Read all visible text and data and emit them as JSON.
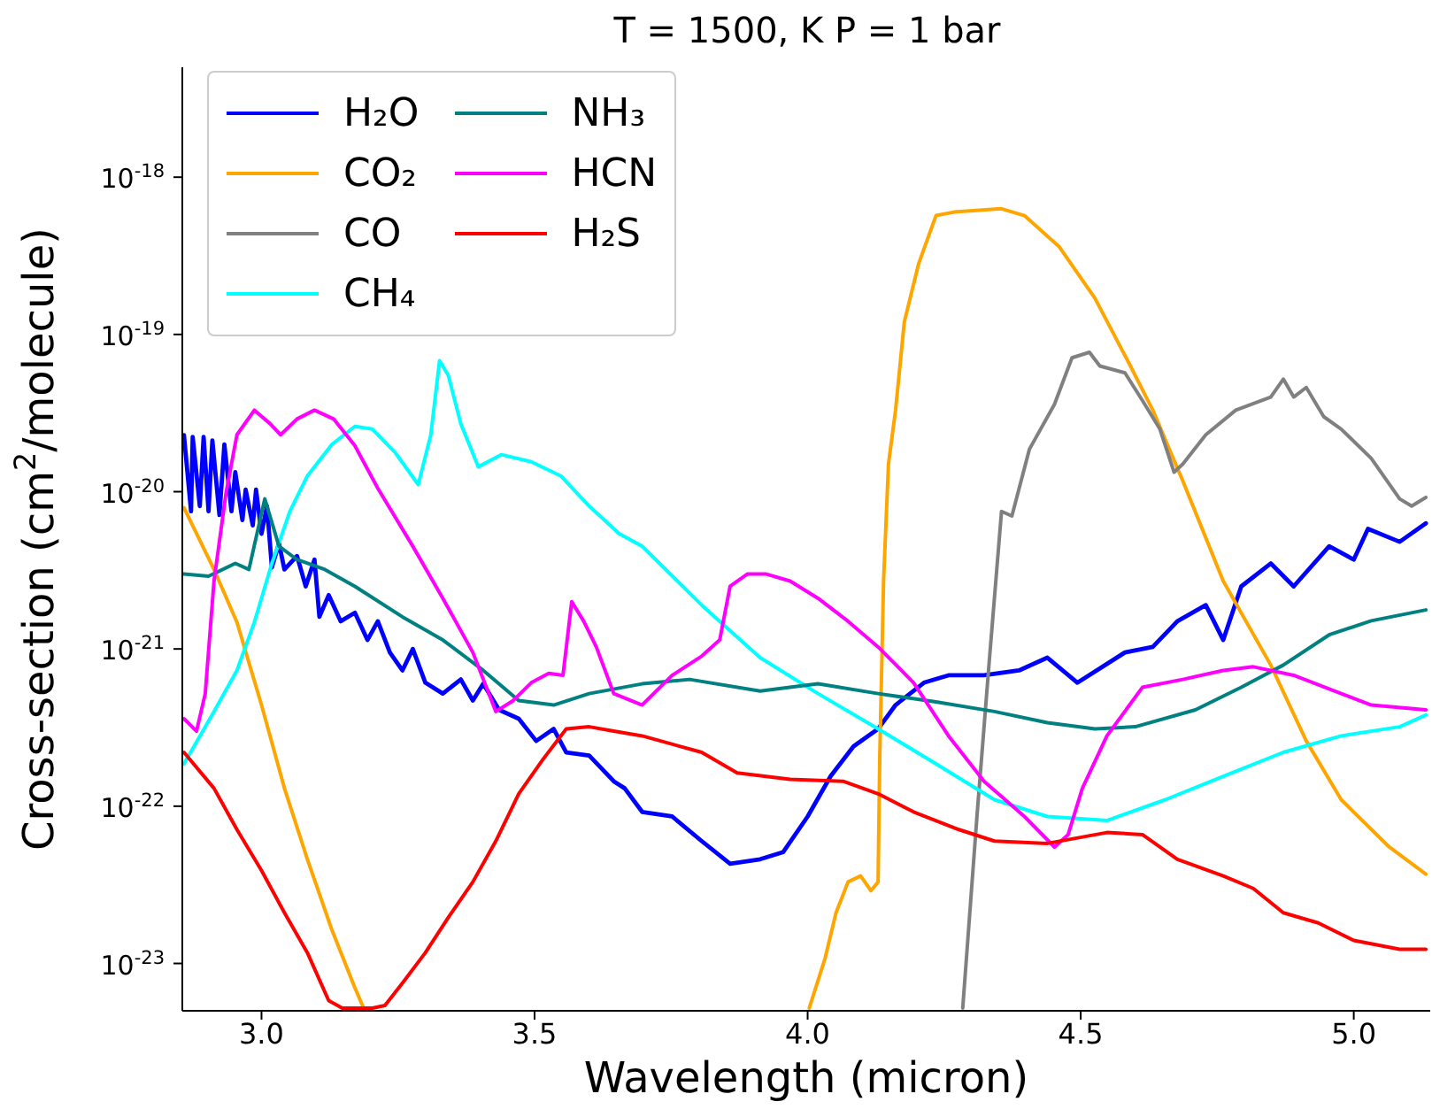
{
  "chart_data": {
    "type": "line",
    "title": "T = 1500, K P = 1 bar",
    "xlabel": "Wavelength (micron)",
    "ylabel": "Cross-section (cm$^{2}$/molecule)",
    "log": "y",
    "legend": "top left",
    "xlim": [
      2.855,
      5.14
    ],
    "ylim": [
      5e-24,
      5e-18
    ],
    "xticks": [
      {
        "value": 3,
        "label": "3.0"
      },
      {
        "value": 3.5,
        "label": "3.5"
      },
      {
        "value": 4,
        "label": "4.0"
      },
      {
        "value": 4.5,
        "label": "4.5"
      },
      {
        "value": 5,
        "label": "5.0"
      }
    ],
    "yticks": [
      {
        "value": 1e-23,
        "label": "10$^{-23}$"
      },
      {
        "value": 1e-22,
        "label": "10$^{-22}$"
      },
      {
        "value": 1e-21,
        "label": "10$^{-21}$"
      },
      {
        "value": 1e-20,
        "label": "10$^{-20}$"
      },
      {
        "value": 1e-19,
        "label": "10$^{-19}$"
      },
      {
        "value": 1e-18,
        "label": "10$^{-18}$"
      }
    ],
    "series": [
      {
        "name": "H₂O",
        "color": "#0000ff",
        "x": [
          2.858,
          2.871,
          2.874,
          2.887,
          2.894,
          2.903,
          2.91,
          2.923,
          2.932,
          2.945,
          2.952,
          2.965,
          2.971,
          2.984,
          2.99,
          3.0,
          3.01,
          3.019,
          3.032,
          3.042,
          3.065,
          3.081,
          3.097,
          3.106,
          3.123,
          3.145,
          3.171,
          3.194,
          3.213,
          3.235,
          3.258,
          3.277,
          3.3,
          3.332,
          3.365,
          3.387,
          3.406,
          3.435,
          3.471,
          3.503,
          3.535,
          3.558,
          3.6,
          3.645,
          3.665,
          3.697,
          3.752,
          3.806,
          3.858,
          3.913,
          3.955,
          4.0,
          4.042,
          4.084,
          4.129,
          4.161,
          4.213,
          4.258,
          4.323,
          4.387,
          4.439,
          4.494,
          4.581,
          4.632,
          4.677,
          4.729,
          4.761,
          4.794,
          4.848,
          4.89,
          4.955,
          5.0,
          5.026,
          5.084,
          5.132
        ],
        "values": [
          2.29e-20,
          7.5e-21,
          2.23e-20,
          8.1e-21,
          2.23e-20,
          7.5e-21,
          2.12e-20,
          7.1e-21,
          2e-20,
          7.5e-21,
          1.33e-20,
          6.6e-21,
          1.03e-20,
          6.1e-21,
          1.03e-20,
          5.4e-21,
          8.1e-21,
          3.3e-21,
          4.7e-21,
          3.2e-21,
          3.9e-21,
          2.5e-21,
          3.7e-21,
          1.6e-21,
          2.2e-21,
          1.5e-21,
          1.7e-21,
          1.14e-21,
          1.5e-21,
          9.5e-22,
          7.3e-22,
          1e-21,
          6.1e-22,
          5.2e-22,
          6.4e-22,
          4.7e-22,
          6e-22,
          4.1e-22,
          3.6e-22,
          2.6e-22,
          3.1e-22,
          2.2e-22,
          2.1e-22,
          1.44e-22,
          1.3e-22,
          9.2e-23,
          8.6e-23,
          6e-23,
          4.3e-23,
          4.6e-23,
          5.1e-23,
          8.6e-23,
          1.55e-22,
          2.4e-22,
          3.1e-22,
          4.4e-22,
          6.1e-22,
          6.8e-22,
          6.8e-22,
          7.3e-22,
          8.8e-22,
          6.1e-22,
          9.5e-22,
          1.03e-21,
          1.5e-21,
          1.9e-21,
          1.14e-21,
          2.5e-21,
          3.5e-21,
          2.5e-21,
          4.5e-21,
          3.7e-21,
          5.8e-21,
          4.8e-21,
          6.3e-21
        ]
      },
      {
        "name": "CO₂",
        "color": "#ffa500",
        "x": [
          2.858,
          2.913,
          2.955,
          3.0,
          3.042,
          3.084,
          3.129,
          3.171,
          3.187,
          3.6,
          4.003,
          4.032,
          4.052,
          4.074,
          4.097,
          4.116,
          4.129,
          4.132,
          4.139,
          4.148,
          4.161,
          4.177,
          4.203,
          4.235,
          4.268,
          4.355,
          4.397,
          4.461,
          4.526,
          4.59,
          4.632,
          4.687,
          4.761,
          4.848,
          4.913,
          4.977,
          5.065,
          5.132
        ],
        "values": [
          7.9e-21,
          3.2e-21,
          1.48e-21,
          4.4e-22,
          1.3e-22,
          4.6e-23,
          1.63e-23,
          7e-24,
          5.2e-24,
          null,
          5.2e-24,
          1.08e-23,
          2.1e-23,
          3.3e-23,
          3.6e-23,
          2.9e-23,
          3.3e-23,
          2e-22,
          2.7e-21,
          1.5e-20,
          3.3e-20,
          1.2e-19,
          2.8e-19,
          5.7e-19,
          6e-19,
          6.3e-19,
          5.7e-19,
          3.6e-19,
          1.7e-19,
          6.4e-20,
          3.3e-20,
          1.17e-20,
          2.7e-21,
          7.9e-22,
          2.6e-22,
          1.1e-22,
          5.5e-23,
          3.7e-23
        ]
      },
      {
        "name": "CO",
        "color": "#808080",
        "x": [
          4.284,
          4.31,
          4.332,
          4.355,
          4.374,
          4.406,
          4.452,
          4.484,
          4.516,
          4.535,
          4.581,
          4.613,
          4.645,
          4.671,
          4.687,
          4.729,
          4.784,
          4.848,
          4.871,
          4.89,
          4.913,
          4.945,
          4.977,
          5.032,
          5.084,
          5.106,
          5.132
        ],
        "values": [
          5.2e-24,
          8.6e-23,
          7.9e-22,
          7.5e-21,
          7e-21,
          1.86e-20,
          3.6e-20,
          7.1e-20,
          7.7e-20,
          6.3e-20,
          5.7e-20,
          3.8e-20,
          2.5e-20,
          1.33e-20,
          1.5e-20,
          2.3e-20,
          3.3e-20,
          4e-20,
          5.2e-20,
          4e-20,
          4.6e-20,
          3e-20,
          2.5e-20,
          1.63e-20,
          9e-21,
          8.1e-21,
          9.2e-21
        ]
      },
      {
        "name": "CH₄",
        "color": "#00ffff",
        "x": [
          2.858,
          2.913,
          2.955,
          2.987,
          3.019,
          3.052,
          3.084,
          3.129,
          3.171,
          3.203,
          3.245,
          3.287,
          3.31,
          3.326,
          3.342,
          3.365,
          3.397,
          3.439,
          3.494,
          3.548,
          3.6,
          3.655,
          3.697,
          3.806,
          3.913,
          4.019,
          4.129,
          4.235,
          4.342,
          4.439,
          4.548,
          4.655,
          4.761,
          4.871,
          4.977,
          5.084,
          5.132
        ],
        "values": [
          1.86e-22,
          4e-22,
          7.3e-22,
          1.48e-21,
          3.5e-21,
          7.5e-21,
          1.26e-20,
          2e-20,
          2.6e-20,
          2.5e-20,
          1.77e-20,
          1.11e-20,
          2.3e-20,
          6.8e-20,
          5.5e-20,
          2.7e-20,
          1.44e-20,
          1.72e-20,
          1.55e-20,
          1.26e-20,
          8.1e-21,
          5.4e-21,
          4.5e-21,
          1.9e-21,
          8.8e-22,
          5.2e-22,
          3.1e-22,
          1.86e-22,
          1.1e-22,
          8.6e-23,
          8.1e-23,
          1.1e-22,
          1.55e-22,
          2.2e-22,
          2.8e-22,
          3.2e-22,
          3.8e-22
        ]
      },
      {
        "name": "NH₃",
        "color": "#008080",
        "x": [
          2.858,
          2.903,
          2.952,
          2.977,
          3.006,
          3.032,
          3.065,
          3.116,
          3.171,
          3.258,
          3.332,
          3.406,
          3.471,
          3.535,
          3.6,
          3.697,
          3.784,
          3.913,
          4.019,
          4.129,
          4.235,
          4.342,
          4.439,
          4.526,
          4.6,
          4.71,
          4.794,
          4.871,
          4.955,
          5.032,
          5.132
        ],
        "values": [
          3e-21,
          2.9e-21,
          3.5e-21,
          3.2e-21,
          9e-21,
          4.5e-21,
          3.7e-21,
          3.2e-21,
          2.5e-21,
          1.6e-21,
          1.14e-21,
          7.3e-22,
          4.7e-22,
          4.4e-22,
          5.2e-22,
          6e-22,
          6.4e-22,
          5.4e-22,
          6e-22,
          5.2e-22,
          4.6e-22,
          4e-22,
          3.4e-22,
          3.1e-22,
          3.2e-22,
          4.1e-22,
          5.7e-22,
          7.9e-22,
          1.23e-21,
          1.51e-21,
          1.77e-21
        ]
      },
      {
        "name": "HCN",
        "color": "#ff00ff",
        "x": [
          2.858,
          2.881,
          2.897,
          2.913,
          2.935,
          2.955,
          2.987,
          3.016,
          3.035,
          3.065,
          3.097,
          3.132,
          3.171,
          3.213,
          3.277,
          3.332,
          3.387,
          3.429,
          3.461,
          3.494,
          3.526,
          3.552,
          3.568,
          3.59,
          3.613,
          3.645,
          3.697,
          3.752,
          3.806,
          3.839,
          3.858,
          3.89,
          3.923,
          3.968,
          4.019,
          4.074,
          4.129,
          4.194,
          4.258,
          4.323,
          4.397,
          4.452,
          4.477,
          4.503,
          4.548,
          4.613,
          4.687,
          4.761,
          4.816,
          4.89,
          4.977,
          5.032,
          5.132
        ],
        "values": [
          3.6e-22,
          3e-22,
          5.2e-22,
          2.7e-21,
          9.8e-21,
          2.3e-20,
          3.3e-20,
          2.7e-20,
          2.3e-20,
          2.9e-20,
          3.3e-20,
          2.9e-20,
          1.96e-20,
          1.05e-20,
          4.5e-21,
          2.1e-21,
          9.5e-22,
          4e-22,
          4.7e-22,
          6.1e-22,
          7e-22,
          6.8e-22,
          2e-21,
          1.5e-21,
          1.03e-21,
          5.2e-22,
          4.4e-22,
          6.8e-22,
          9e-22,
          1.14e-21,
          2.5e-21,
          3e-21,
          3e-21,
          2.7e-21,
          2.1e-21,
          1.5e-21,
          1.03e-21,
          6.1e-22,
          2.8e-22,
          1.44e-22,
          8.6e-23,
          5.5e-23,
          6.6e-23,
          1.3e-22,
          2.8e-22,
          5.7e-22,
          6.4e-22,
          7.3e-22,
          7.7e-22,
          6.8e-22,
          5.2e-22,
          4.4e-22,
          4.1e-22
        ]
      },
      {
        "name": "H₂S",
        "color": "#ff0000",
        "x": [
          2.858,
          2.913,
          2.955,
          3.0,
          3.042,
          3.084,
          3.123,
          3.148,
          3.203,
          3.226,
          3.258,
          3.3,
          3.342,
          3.387,
          3.429,
          3.471,
          3.516,
          3.558,
          3.6,
          3.645,
          3.697,
          3.806,
          3.871,
          3.968,
          4.065,
          4.129,
          4.194,
          4.277,
          4.342,
          4.439,
          4.548,
          4.613,
          4.677,
          4.761,
          4.816,
          4.871,
          4.935,
          5.0,
          5.084,
          5.132
        ],
        "values": [
          2.2e-22,
          1.3e-22,
          7.1e-23,
          3.9e-23,
          2.1e-23,
          1.17e-23,
          5.8e-24,
          5.2e-24,
          5.2e-24,
          5.4e-24,
          7.5e-24,
          1.17e-23,
          1.96e-23,
          3.3e-23,
          6e-23,
          1.2e-22,
          2e-22,
          3.1e-22,
          3.2e-22,
          3e-22,
          2.8e-22,
          2.2e-22,
          1.63e-22,
          1.48e-22,
          1.44e-22,
          1.2e-22,
          9.2e-23,
          7.1e-23,
          6e-23,
          5.8e-23,
          6.8e-23,
          6.6e-23,
          4.6e-23,
          3.6e-23,
          3e-23,
          2.1e-23,
          1.81e-23,
          1.4e-23,
          1.23e-23,
          1.23e-23
        ]
      }
    ]
  }
}
